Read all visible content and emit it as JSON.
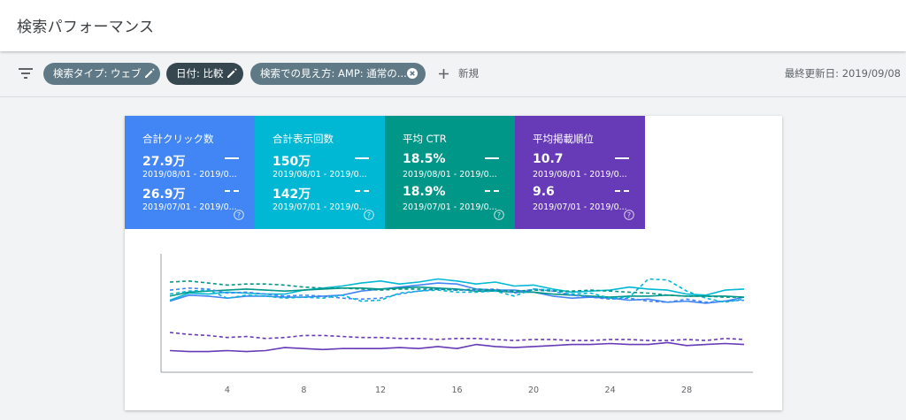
{
  "header": {
    "title": "検索パフォーマンス"
  },
  "toolbar": {
    "chips": [
      {
        "label": "検索タイプ: ウェブ"
      },
      {
        "label": "日付: 比較"
      },
      {
        "label": "検索での見え方: AMP: 通常の..."
      }
    ],
    "new_label": "新規",
    "last_updated": "最終更新日: 2019/09/08"
  },
  "metrics": [
    {
      "label": "合計クリック数",
      "value1": "27.9万",
      "range1": "2019/08/01 - 2019/0...",
      "value2": "26.9万",
      "range2": "2019/07/01 - 2019/0...",
      "color": "#4285f4"
    },
    {
      "label": "合計表示回数",
      "value1": "150万",
      "range1": "2019/08/01 - 2019/0...",
      "value2": "142万",
      "range2": "2019/07/01 - 2019/0...",
      "color": "#00b8d4"
    },
    {
      "label": "平均 CTR",
      "value1": "18.5%",
      "range1": "2019/08/01 - 2019/0...",
      "value2": "18.9%",
      "range2": "2019/07/01 - 2019/0...",
      "color": "#009688"
    },
    {
      "label": "平均掲載順位",
      "value1": "10.7",
      "range1": "2019/08/01 - 2019/0...",
      "value2": "9.6",
      "range2": "2019/07/01 - 2019/0...",
      "color": "#673ab7"
    }
  ],
  "chart_data": {
    "type": "line",
    "x": [
      1,
      2,
      3,
      4,
      5,
      6,
      7,
      8,
      9,
      10,
      11,
      12,
      13,
      14,
      15,
      16,
      17,
      18,
      19,
      20,
      21,
      22,
      23,
      24,
      25,
      26,
      27,
      28,
      29,
      30,
      31
    ],
    "xticks": [
      "4",
      "8",
      "12",
      "16",
      "20",
      "24",
      "28"
    ],
    "xtick_values": [
      4,
      8,
      12,
      16,
      20,
      24,
      28
    ],
    "grid": false,
    "legend": "metric tiles above chart",
    "series": [
      {
        "metric": "clicks",
        "period": "2019/08",
        "dashed": false,
        "color": "#4285f4",
        "values": [
          67,
          73,
          72,
          70,
          72,
          72,
          71,
          71,
          72,
          73,
          77,
          79,
          81,
          83,
          85,
          84,
          79,
          78,
          78,
          76,
          72,
          70,
          71,
          70,
          68,
          69,
          66,
          67,
          65,
          67,
          71
        ]
      },
      {
        "metric": "impressions",
        "period": "2019/08",
        "dashed": false,
        "color": "#00b8d4",
        "values": [
          68,
          75,
          74,
          76,
          75,
          74,
          74,
          78,
          80,
          82,
          85,
          87,
          84,
          86,
          89,
          87,
          84,
          86,
          82,
          83,
          79,
          76,
          77,
          78,
          81,
          79,
          78,
          74,
          73,
          78,
          79
        ]
      },
      {
        "metric": "ctr",
        "period": "2019/08",
        "dashed": false,
        "color": "#009688",
        "values": [
          72,
          76,
          77,
          78,
          79,
          78,
          77,
          78,
          79,
          80,
          80,
          79,
          80,
          81,
          80,
          79,
          77,
          77,
          76,
          76,
          74,
          73,
          72,
          71,
          72,
          72,
          73,
          72,
          72,
          72,
          71
        ]
      },
      {
        "metric": "position",
        "period": "2019/08",
        "dashed": false,
        "color": "#673ab7",
        "values": [
          18,
          17,
          17,
          18,
          17,
          18,
          21,
          20,
          19,
          20,
          20,
          20,
          21,
          20,
          22,
          20,
          24,
          22,
          21,
          22,
          23,
          24,
          24,
          25,
          24,
          24,
          26,
          23,
          24,
          25,
          24
        ]
      },
      {
        "metric": "clicks",
        "period": "2019/07",
        "dashed": true,
        "color": "#4285f4",
        "values": [
          78,
          80,
          79,
          75,
          76,
          74,
          72,
          73,
          72,
          70,
          69,
          70,
          74,
          77,
          79,
          78,
          78,
          79,
          75,
          79,
          77,
          73,
          71,
          69,
          70,
          67,
          66,
          69,
          66,
          67,
          68
        ]
      },
      {
        "metric": "impressions",
        "period": "2019/07",
        "dashed": true,
        "color": "#00b8d4",
        "values": [
          74,
          77,
          78,
          70,
          73,
          72,
          70,
          71,
          70,
          73,
          67,
          68,
          75,
          77,
          78,
          76,
          76,
          77,
          72,
          79,
          78,
          74,
          75,
          70,
          71,
          89,
          88,
          77,
          70,
          66,
          69
        ]
      },
      {
        "metric": "ctr",
        "period": "2019/07",
        "dashed": true,
        "color": "#009688",
        "values": [
          86,
          87,
          85,
          83,
          84,
          84,
          83,
          81,
          80,
          80,
          79,
          78,
          79,
          79,
          79,
          78,
          79,
          78,
          77,
          78,
          77,
          77,
          78,
          77,
          76,
          75,
          73,
          72,
          72,
          71,
          71
        ]
      },
      {
        "metric": "position",
        "period": "2019/07",
        "dashed": true,
        "color": "#673ab7",
        "values": [
          36,
          34,
          33,
          31,
          32,
          30,
          31,
          33,
          33,
          32,
          31,
          31,
          30,
          30,
          29,
          30,
          30,
          29,
          28,
          29,
          29,
          28,
          28,
          29,
          29,
          28,
          28,
          29,
          28,
          30,
          29
        ]
      }
    ]
  }
}
